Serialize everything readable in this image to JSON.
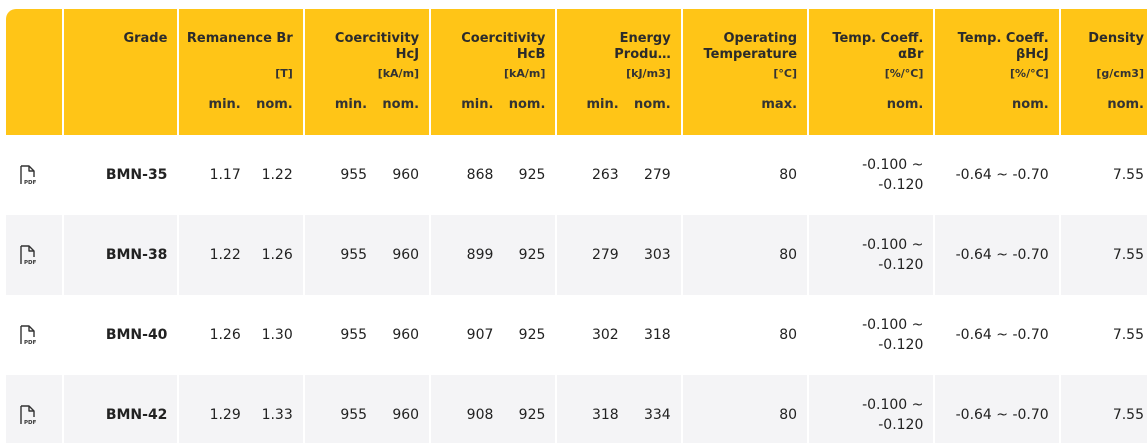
{
  "header": {
    "grade": "Grade",
    "remanence": {
      "title": "Remanence Br",
      "unit": "[T]",
      "sub": [
        "min.",
        "nom."
      ]
    },
    "hcj": {
      "title1": "Coercitivity",
      "title2": "HcJ",
      "unit": "[kA/m]",
      "sub": [
        "min.",
        "nom."
      ]
    },
    "hcb": {
      "title1": "Coercitivity",
      "title2": "HcB",
      "unit": "[kA/m]",
      "sub": [
        "min.",
        "nom."
      ]
    },
    "energy": {
      "title1": "Energy",
      "title2": "Produ…",
      "unit": "[kJ/m3]",
      "sub": [
        "min.",
        "nom."
      ]
    },
    "operating": {
      "title1": "Operating",
      "title2": "Temperature",
      "unit": "[°C]",
      "sub": "max."
    },
    "alpha": {
      "title1": "Temp. Coeff.",
      "title2": "αBr",
      "unit": "[%/°C]",
      "sub": "nom."
    },
    "beta": {
      "title1": "Temp. Coeff.",
      "title2": "βHcJ",
      "unit": "[%/°C]",
      "sub": "nom."
    },
    "density": {
      "title": "Density",
      "unit": "[g/cm3]",
      "sub": "nom."
    }
  },
  "rows": [
    {
      "grade": "BMN-35",
      "br_min": "1.17",
      "br_nom": "1.22",
      "hcj_min": "955",
      "hcj_nom": "960",
      "hcb_min": "868",
      "hcb_nom": "925",
      "bh_min": "263",
      "bh_nom": "279",
      "temp_max": "80",
      "alpha_1": "-0.100 ~",
      "alpha_2": "-0.120",
      "beta": "-0.64 ~ -0.70",
      "density": "7.55"
    },
    {
      "grade": "BMN-38",
      "br_min": "1.22",
      "br_nom": "1.26",
      "hcj_min": "955",
      "hcj_nom": "960",
      "hcb_min": "899",
      "hcb_nom": "925",
      "bh_min": "279",
      "bh_nom": "303",
      "temp_max": "80",
      "alpha_1": "-0.100 ~",
      "alpha_2": "-0.120",
      "beta": "-0.64 ~ -0.70",
      "density": "7.55"
    },
    {
      "grade": "BMN-40",
      "br_min": "1.26",
      "br_nom": "1.30",
      "hcj_min": "955",
      "hcj_nom": "960",
      "hcb_min": "907",
      "hcb_nom": "925",
      "bh_min": "302",
      "bh_nom": "318",
      "temp_max": "80",
      "alpha_1": "-0.100 ~",
      "alpha_2": "-0.120",
      "beta": "-0.64 ~ -0.70",
      "density": "7.55"
    },
    {
      "grade": "BMN-42",
      "br_min": "1.29",
      "br_nom": "1.33",
      "hcj_min": "955",
      "hcj_nom": "960",
      "hcb_min": "908",
      "hcb_nom": "925",
      "bh_min": "318",
      "bh_nom": "334",
      "temp_max": "80",
      "alpha_1": "-0.100 ~",
      "alpha_2": "-0.120",
      "beta": "-0.64 ~ -0.70",
      "density": "7.55"
    }
  ],
  "icons": {
    "pdf": "pdf-file-icon",
    "pdf_text": "PDF"
  },
  "colors": {
    "header_bg": "#ffc517",
    "row_alt": "#f4f4f6"
  }
}
